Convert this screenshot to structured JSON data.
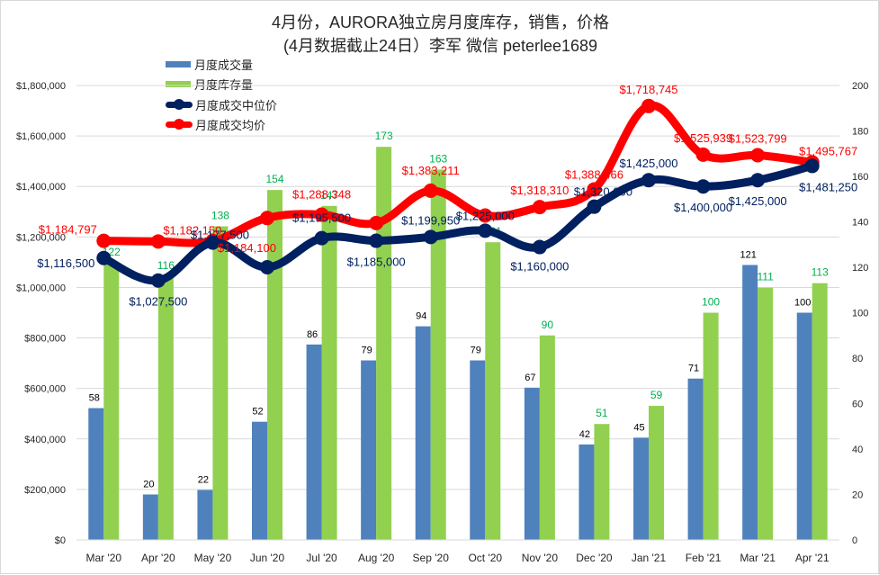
{
  "title": {
    "line1": "4月份，AURORA独立房月度库存，销售，价格",
    "line2": "(4月数据截止24日）李军  微信 peterlee1689"
  },
  "colors": {
    "sales_bar": "#4f81bd",
    "inventory_bar": "#92d050",
    "median_line": "#002060",
    "avg_line": "#ff0000",
    "inventory_label": "#00b050",
    "sales_label": "#000000",
    "grid": "#d9d9d9",
    "axis_text": "#262626"
  },
  "legend": [
    {
      "name": "月度成交量",
      "kind": "bar",
      "color_key": "sales_bar"
    },
    {
      "name": "月度库存量",
      "kind": "bar",
      "color_key": "inventory_bar"
    },
    {
      "name": "月度成交中位价",
      "kind": "line",
      "color_key": "median_line"
    },
    {
      "name": "月度成交均价",
      "kind": "line",
      "color_key": "avg_line"
    }
  ],
  "chart_data": {
    "type": "bar",
    "title": "4月份，AURORA独立房月度库存，销售，价格 (4月数据截止24日）李军  微信 peterlee1689",
    "categories": [
      "Mar '20",
      "Apr '20",
      "May '20",
      "Jun '20",
      "Jul '20",
      "Aug '20",
      "Sep '20",
      "Oct '20",
      "Nov '20",
      "Dec '20",
      "Jan '21",
      "Feb '21",
      "Mar '21",
      "Apr '21"
    ],
    "left_axis": {
      "label": "",
      "ylim": [
        0,
        1800000
      ],
      "ticks": [
        0,
        200000,
        400000,
        600000,
        800000,
        1000000,
        1200000,
        1400000,
        1600000,
        1800000
      ],
      "tick_labels": [
        "$0",
        "$200,000",
        "$400,000",
        "$600,000",
        "$800,000",
        "$1,000,000",
        "$1,200,000",
        "$1,400,000",
        "$1,600,000",
        "$1,800,000"
      ]
    },
    "right_axis": {
      "label": "",
      "ylim": [
        0,
        200
      ],
      "ticks": [
        0,
        20,
        40,
        60,
        80,
        100,
        120,
        140,
        160,
        180,
        200
      ],
      "tick_labels": [
        "0",
        "20",
        "40",
        "60",
        "80",
        "100",
        "120",
        "140",
        "160",
        "180",
        "200"
      ]
    },
    "grid": true,
    "legend_position": "top-left",
    "series": [
      {
        "name": "月度成交量",
        "type": "bar",
        "axis": "right",
        "color_key": "sales_bar",
        "values": [
          58,
          20,
          22,
          52,
          86,
          79,
          94,
          79,
          67,
          42,
          45,
          71,
          121,
          100
        ],
        "labels": [
          "58",
          "20",
          "22",
          "52",
          "86",
          "79",
          "94",
          "79",
          "67",
          "42",
          "45",
          "71",
          "121",
          "100"
        ]
      },
      {
        "name": "月度库存量",
        "type": "bar",
        "axis": "right",
        "color_key": "inventory_bar",
        "values": [
          122,
          116,
          138,
          154,
          147,
          173,
          163,
          131,
          90,
          51,
          59,
          100,
          111,
          113
        ],
        "labels": [
          "122",
          "116",
          "138",
          "154",
          "147",
          "173",
          "163",
          "131",
          "90",
          "51",
          "59",
          "100",
          "111",
          "113"
        ]
      },
      {
        "name": "月度成交中位价",
        "type": "line",
        "axis": "left",
        "color_key": "median_line",
        "values": [
          1116500,
          1027500,
          1177500,
          1080000,
          1195500,
          1185000,
          1199950,
          1225000,
          1160000,
          1320000,
          1425000,
          1400000,
          1425000,
          1481250
        ],
        "labels": [
          "$1,116,500",
          "$1,027,500",
          "$1,177,500",
          "",
          "$1,195,500",
          "$1,185,000",
          "$1,199,950",
          "$1,225,000",
          "$1,160,000",
          "$1,320,000",
          "$1,425,000",
          "$1,400,000",
          "$1,425,000",
          "$1,481,250"
        ]
      },
      {
        "name": "月度成交均价",
        "type": "line",
        "axis": "left",
        "color_key": "avg_line",
        "values": [
          1184797,
          1182150,
          1184100,
          1275000,
          1288348,
          1255000,
          1383211,
          1285000,
          1318310,
          1388466,
          1718745,
          1525939,
          1523799,
          1495767
        ],
        "labels": [
          "$1,184,797",
          "$1,182,150",
          "$1,184,100",
          "",
          "$1,288,348",
          "",
          "$1,383,211",
          "",
          "$1,318,310",
          "$1,388,466",
          "$1,718,745",
          "$1,525,939",
          "$1,523,799",
          "$1,495,767"
        ]
      }
    ]
  }
}
